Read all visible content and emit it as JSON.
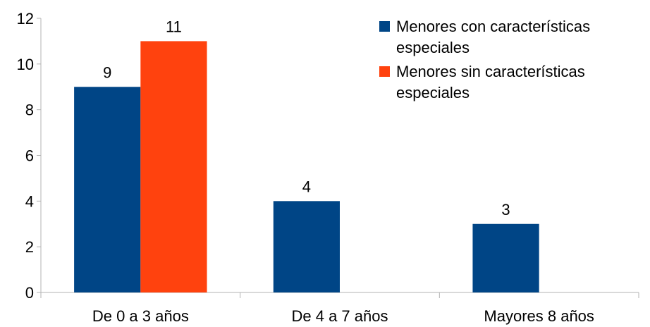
{
  "chart_data": {
    "type": "bar",
    "categories": [
      "De 0 a 3 años",
      "De 4 a 7 años",
      "Mayores 8 años"
    ],
    "series": [
      {
        "name": "Menores con características especiales",
        "name_lines": [
          "Menores con características",
          "especiales"
        ],
        "color": "#004586",
        "values": [
          9,
          4,
          3
        ]
      },
      {
        "name": "Menores sin características especiales",
        "name_lines": [
          "Menores sin características",
          "especiales"
        ],
        "color": "#ff420e",
        "values": [
          11,
          null,
          null
        ]
      }
    ],
    "data_labels": true,
    "ylim": [
      0,
      12
    ],
    "yticks": [
      0,
      2,
      4,
      6,
      8,
      10,
      12
    ],
    "grid": false,
    "legend_position": "top-right",
    "title": "",
    "xlabel": "",
    "ylabel": ""
  }
}
